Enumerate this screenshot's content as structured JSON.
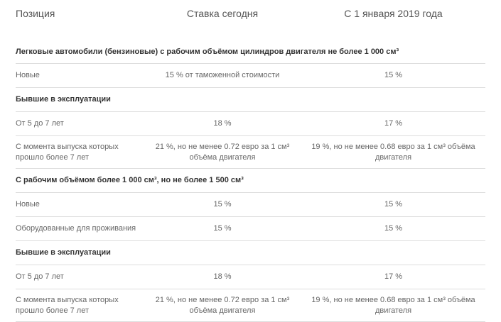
{
  "header": {
    "position": "Позиция",
    "today": "Ставка сегодня",
    "from2019": "С 1 января 2019 года"
  },
  "rows": [
    {
      "type": "section",
      "title": "Легковые автомобили (бензиновые) с рабочим объёмом цилиндров двигателя не более 1 000 см³"
    },
    {
      "type": "data",
      "position": "Новые",
      "today": "15 % от таможенной стоимости",
      "from2019": "15 %"
    },
    {
      "type": "section",
      "title": "Бывшие в эксплуатации"
    },
    {
      "type": "data",
      "position": "От 5 до 7 лет",
      "today": "18 %",
      "from2019": "17 %"
    },
    {
      "type": "data",
      "position": "С момента выпуска которых прошло более 7 лет",
      "today": "21 %, но не менее 0.72 евро за 1 см³ объёма двигателя",
      "from2019": "19 %, но не менее 0.68 евро за 1 см³ объёма двигателя"
    },
    {
      "type": "section",
      "title": "С рабочим объёмом более 1 000 см³, но не более 1 500 см³"
    },
    {
      "type": "data",
      "position": "Новые",
      "today": "15 %",
      "from2019": "15 %"
    },
    {
      "type": "data",
      "position": "Оборудованные для проживания",
      "today": "15 %",
      "from2019": "15 %"
    },
    {
      "type": "section",
      "title": "Бывшие в эксплуатации"
    },
    {
      "type": "data",
      "position": "От 5 до 7 лет",
      "today": "18 %",
      "from2019": "17 %"
    },
    {
      "type": "data",
      "position": "С момента выпуска которых прошло более 7 лет",
      "today": "21 %, но не менее 0.72 евро за 1 см³ объёма двигателя",
      "from2019": "19 %, но не менее 0.68 евро за 1 см³ объёма двигателя"
    }
  ]
}
